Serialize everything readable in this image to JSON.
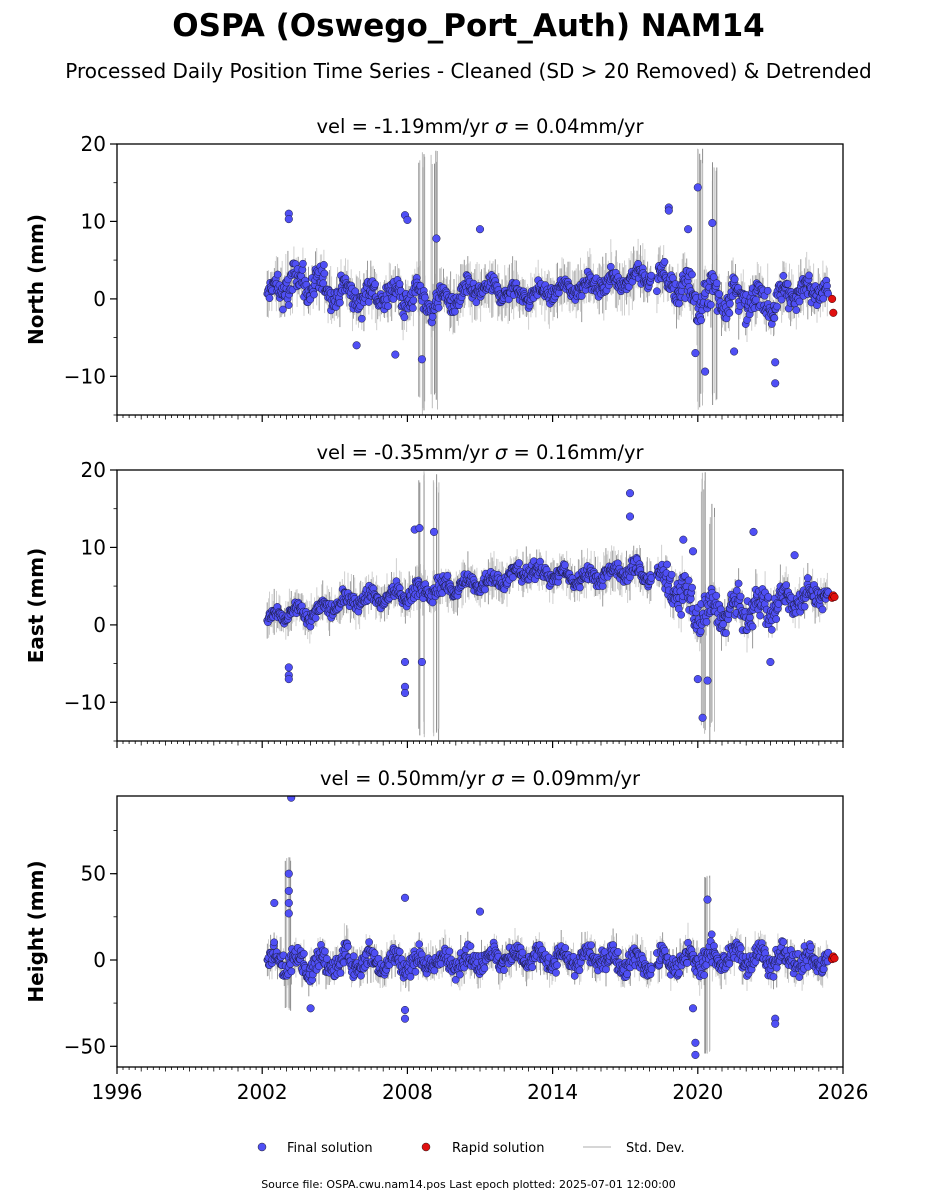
{
  "figure": {
    "title": "OSPA (Oswego_Port_Auth) NAM14",
    "subtitle": "Processed Daily Position Time Series - Cleaned (SD > 20 Removed) & Detrended",
    "source_note": "Source file: OSPA.cwu.nam14.pos  Last epoch plotted: 2025-07-01 12:00:00"
  },
  "legend": {
    "placement": "bottom-center",
    "entries": [
      {
        "label": "Final solution",
        "color": "#4f4ff5"
      },
      {
        "label": "Rapid solution",
        "color": "#e01010"
      },
      {
        "label": "Std. Dev.",
        "color": "#c8c8c8"
      }
    ]
  },
  "chart_data": [
    {
      "type": "scatter",
      "title_parts": {
        "vel": "vel = -1.19mm/yr",
        "sigma_sym": "σ",
        "sigma": " = 0.04mm/yr"
      },
      "ylabel": "North (mm)",
      "xlim": [
        1996,
        2026
      ],
      "ylim": [
        -15,
        20
      ],
      "yticks": [
        -10,
        0,
        10,
        20
      ],
      "yticklabels": [
        "−10",
        "0",
        "10",
        "20"
      ],
      "grid": false,
      "series": [
        {
          "name": "Final solution",
          "color": "#4f4ff5",
          "coverage": [
            [
              2002.2,
              2018.1
            ],
            [
              2018.3,
              2025.4
            ]
          ],
          "envelope": [
            [
              2002.2,
              0.0,
              2.5
            ],
            [
              2003.0,
              2.0,
              3.5
            ],
            [
              2004.0,
              2.0,
              3.0
            ],
            [
              2005.0,
              1.0,
              2.5
            ],
            [
              2006.0,
              0.5,
              2.5
            ],
            [
              2007.0,
              0.5,
              2.5
            ],
            [
              2008.0,
              0.5,
              3.0
            ],
            [
              2009.0,
              -0.5,
              2.5
            ],
            [
              2010.0,
              0.0,
              2.0
            ],
            [
              2011.0,
              1.5,
              2.0
            ],
            [
              2012.0,
              1.0,
              1.5
            ],
            [
              2013.0,
              0.5,
              1.5
            ],
            [
              2014.0,
              1.0,
              1.5
            ],
            [
              2015.0,
              1.5,
              1.5
            ],
            [
              2016.0,
              2.0,
              1.5
            ],
            [
              2017.0,
              2.5,
              1.5
            ],
            [
              2018.0,
              3.0,
              2.0
            ],
            [
              2019.0,
              2.0,
              3.0
            ],
            [
              2020.0,
              0.0,
              4.0
            ],
            [
              2021.0,
              0.5,
              3.5
            ],
            [
              2022.0,
              0.0,
              3.0
            ],
            [
              2023.0,
              -0.5,
              3.0
            ],
            [
              2024.0,
              1.0,
              2.5
            ],
            [
              2025.4,
              1.5,
              2.0
            ]
          ],
          "outliers": [
            [
              2003.1,
              11.0
            ],
            [
              2003.1,
              10.3
            ],
            [
              2007.9,
              10.8
            ],
            [
              2008.0,
              10.2
            ],
            [
              2009.2,
              7.8
            ],
            [
              2011.0,
              9.0
            ],
            [
              2018.8,
              11.8
            ],
            [
              2018.8,
              11.4
            ],
            [
              2020.0,
              14.4
            ],
            [
              2005.9,
              -6.0
            ],
            [
              2007.5,
              -7.2
            ],
            [
              2008.6,
              -7.8
            ],
            [
              2020.3,
              -9.4
            ],
            [
              2019.9,
              -7.0
            ],
            [
              2023.2,
              -8.2
            ],
            [
              2023.2,
              -10.9
            ],
            [
              2021.5,
              -6.8
            ],
            [
              2019.6,
              9.0
            ],
            [
              2020.6,
              9.8
            ]
          ]
        },
        {
          "name": "Rapid solution",
          "color": "#e01010",
          "points": [
            [
              2025.55,
              0.0
            ],
            [
              2025.6,
              -1.8
            ]
          ]
        },
        {
          "name": "Std. Dev.",
          "color": "#c8c8c8",
          "typical_sd": 2.5,
          "large_sd": [
            [
              2008.6,
              -15,
              20
            ],
            [
              2009.1,
              -15,
              20
            ],
            [
              2020.1,
              -15,
              20
            ],
            [
              2020.7,
              -15,
              18
            ]
          ]
        }
      ]
    },
    {
      "type": "scatter",
      "title_parts": {
        "vel": "vel = -0.35mm/yr",
        "sigma_sym": "σ",
        "sigma": " = 0.16mm/yr"
      },
      "ylabel": "East (mm)",
      "xlim": [
        1996,
        2026
      ],
      "ylim": [
        -15,
        20
      ],
      "yticks": [
        -10,
        0,
        10,
        20
      ],
      "yticklabels": [
        "−10",
        "0",
        "10",
        "20"
      ],
      "grid": false,
      "series": [
        {
          "name": "Final solution",
          "color": "#4f4ff5",
          "coverage": [
            [
              2002.2,
              2018.1
            ],
            [
              2018.3,
              2025.4
            ]
          ],
          "envelope": [
            [
              2002.2,
              0.5,
              1.5
            ],
            [
              2003.0,
              1.5,
              1.5
            ],
            [
              2004.0,
              1.5,
              1.5
            ],
            [
              2005.0,
              2.5,
              1.5
            ],
            [
              2006.0,
              3.5,
              1.5
            ],
            [
              2007.0,
              3.5,
              1.5
            ],
            [
              2008.0,
              4.0,
              2.0
            ],
            [
              2009.0,
              4.5,
              1.8
            ],
            [
              2010.0,
              5.0,
              1.5
            ],
            [
              2011.0,
              5.5,
              1.5
            ],
            [
              2012.0,
              6.0,
              1.5
            ],
            [
              2013.0,
              7.0,
              1.5
            ],
            [
              2014.0,
              6.5,
              1.5
            ],
            [
              2015.0,
              6.0,
              1.5
            ],
            [
              2016.0,
              6.5,
              1.5
            ],
            [
              2017.0,
              7.0,
              1.5
            ],
            [
              2018.0,
              6.5,
              2.0
            ],
            [
              2019.0,
              5.0,
              3.0
            ],
            [
              2020.0,
              1.5,
              3.5
            ],
            [
              2021.0,
              1.5,
              3.0
            ],
            [
              2022.0,
              2.0,
              3.0
            ],
            [
              2023.0,
              2.5,
              3.0
            ],
            [
              2024.0,
              3.5,
              2.5
            ],
            [
              2025.4,
              4.0,
              1.5
            ]
          ],
          "outliers": [
            [
              2003.1,
              -5.5
            ],
            [
              2003.1,
              -6.5
            ],
            [
              2003.1,
              -7.0
            ],
            [
              2007.9,
              -8.0
            ],
            [
              2007.9,
              -8.8
            ],
            [
              2007.9,
              -4.8
            ],
            [
              2008.6,
              -4.8
            ],
            [
              2008.3,
              12.3
            ],
            [
              2008.5,
              12.5
            ],
            [
              2009.1,
              12.0
            ],
            [
              2017.2,
              17.0
            ],
            [
              2017.2,
              14.0
            ],
            [
              2019.4,
              11.0
            ],
            [
              2020.0,
              -7.0
            ],
            [
              2020.4,
              -7.2
            ],
            [
              2020.2,
              -12.0
            ],
            [
              2022.3,
              12.0
            ],
            [
              2023.0,
              -4.8
            ],
            [
              2024.0,
              9.0
            ],
            [
              2019.8,
              9.5
            ]
          ]
        },
        {
          "name": "Rapid solution",
          "color": "#e01010",
          "points": [
            [
              2025.55,
              3.5
            ],
            [
              2025.6,
              3.8
            ],
            [
              2025.65,
              3.6
            ]
          ]
        },
        {
          "name": "Std. Dev.",
          "color": "#c8c8c8",
          "typical_sd": 2.0,
          "large_sd": [
            [
              2008.6,
              -15,
              20
            ],
            [
              2009.2,
              -15,
              20
            ],
            [
              2020.2,
              -15,
              20
            ],
            [
              2020.6,
              -15,
              16
            ]
          ]
        }
      ]
    },
    {
      "type": "scatter",
      "title_parts": {
        "vel": "vel = 0.50mm/yr",
        "sigma_sym": "σ",
        "sigma": " = 0.09mm/yr"
      },
      "ylabel": "Height (mm)",
      "xlabel": "",
      "xlim": [
        1996,
        2026
      ],
      "ylim": [
        -62,
        95
      ],
      "yticks": [
        -50,
        0,
        50
      ],
      "yticklabels": [
        "−50",
        "0",
        "50"
      ],
      "xticks": [
        1996,
        2002,
        2008,
        2014,
        2020,
        2026
      ],
      "xticklabels": [
        "1996",
        "2002",
        "2008",
        "2014",
        "2020",
        "2026"
      ],
      "grid": false,
      "series": [
        {
          "name": "Final solution",
          "color": "#4f4ff5",
          "coverage": [
            [
              2002.2,
              2018.1
            ],
            [
              2018.3,
              2025.4
            ]
          ],
          "envelope": [
            [
              2002.2,
              0.0,
              10.0
            ],
            [
              2004.0,
              -3.0,
              10.0
            ],
            [
              2006.0,
              0.0,
              10.0
            ],
            [
              2008.0,
              -2.0,
              10.0
            ],
            [
              2010.0,
              -1.0,
              9.0
            ],
            [
              2012.0,
              2.0,
              9.0
            ],
            [
              2014.0,
              0.0,
              9.0
            ],
            [
              2016.0,
              1.0,
              9.0
            ],
            [
              2018.0,
              -2.0,
              10.0
            ],
            [
              2020.0,
              0.0,
              10.0
            ],
            [
              2022.0,
              2.0,
              10.0
            ],
            [
              2024.0,
              0.0,
              10.0
            ],
            [
              2025.4,
              0.0,
              9.0
            ]
          ],
          "outliers": [
            [
              2003.2,
              94.0
            ],
            [
              2003.1,
              50.0
            ],
            [
              2003.1,
              40.0
            ],
            [
              2003.1,
              33.0
            ],
            [
              2002.5,
              33.0
            ],
            [
              2003.1,
              27.0
            ],
            [
              2007.9,
              36.0
            ],
            [
              2007.9,
              -29.0
            ],
            [
              2007.9,
              -34.0
            ],
            [
              2020.4,
              35.0
            ],
            [
              2019.9,
              -48.0
            ],
            [
              2019.9,
              -55.0
            ],
            [
              2019.8,
              -28.0
            ],
            [
              2023.2,
              -34.0
            ],
            [
              2023.2,
              -37.0
            ],
            [
              2011.0,
              28.0
            ],
            [
              2004.0,
              -28.0
            ]
          ]
        },
        {
          "name": "Rapid solution",
          "color": "#e01010",
          "points": [
            [
              2025.55,
              0.5
            ],
            [
              2025.6,
              2.0
            ],
            [
              2025.65,
              1.0
            ]
          ]
        },
        {
          "name": "Std. Dev.",
          "color": "#c8c8c8",
          "typical_sd": 8.0,
          "large_sd": [
            [
              2003.1,
              -30,
              60
            ],
            [
              2020.4,
              -55,
              50
            ]
          ]
        }
      ]
    }
  ]
}
